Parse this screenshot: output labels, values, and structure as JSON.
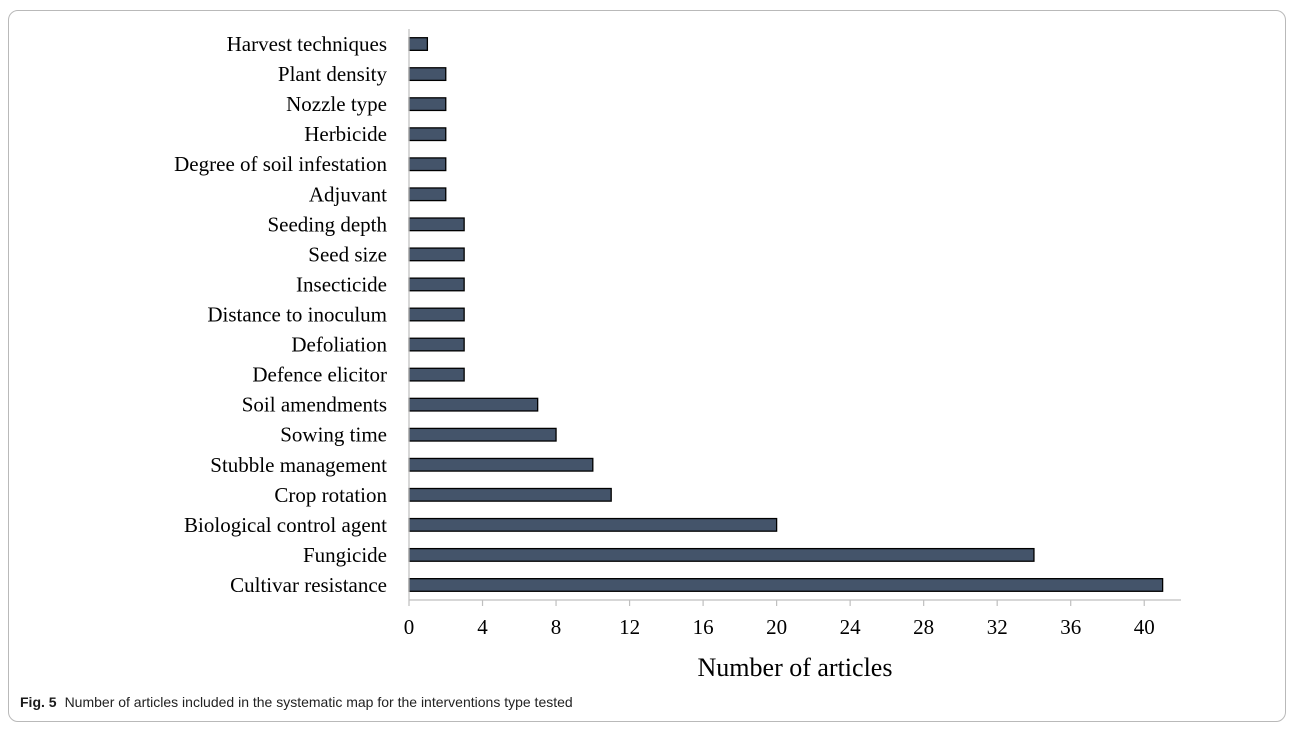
{
  "caption": {
    "figure_number": "Fig. 5",
    "text": "Number of articles included in the systematic map for the interventions type tested"
  },
  "colors": {
    "bar_fill": "#44546a",
    "bar_stroke": "#000000",
    "axis": "#bfbfbf"
  },
  "chart_data": {
    "type": "bar",
    "orientation": "horizontal",
    "categories": [
      "Harvest techniques",
      "Plant density",
      "Nozzle type",
      "Herbicide",
      "Degree of soil infestation",
      "Adjuvant",
      "Seeding depth",
      "Seed size",
      "Insecticide",
      "Distance to inoculum",
      "Defoliation",
      "Defence elicitor",
      "Soil amendments",
      "Sowing time",
      "Stubble management",
      "Crop rotation",
      "Biological control agent",
      "Fungicide",
      "Cultivar resistance"
    ],
    "values": [
      1,
      2,
      2,
      2,
      2,
      2,
      3,
      3,
      3,
      3,
      3,
      3,
      7,
      8,
      10,
      11,
      20,
      34,
      41
    ],
    "xlabel": "Number of articles",
    "ylabel": "",
    "xlim": [
      0,
      42
    ],
    "xticks": [
      0,
      4,
      8,
      12,
      16,
      20,
      24,
      28,
      32,
      36,
      40
    ],
    "grid": false,
    "legend": "none"
  }
}
